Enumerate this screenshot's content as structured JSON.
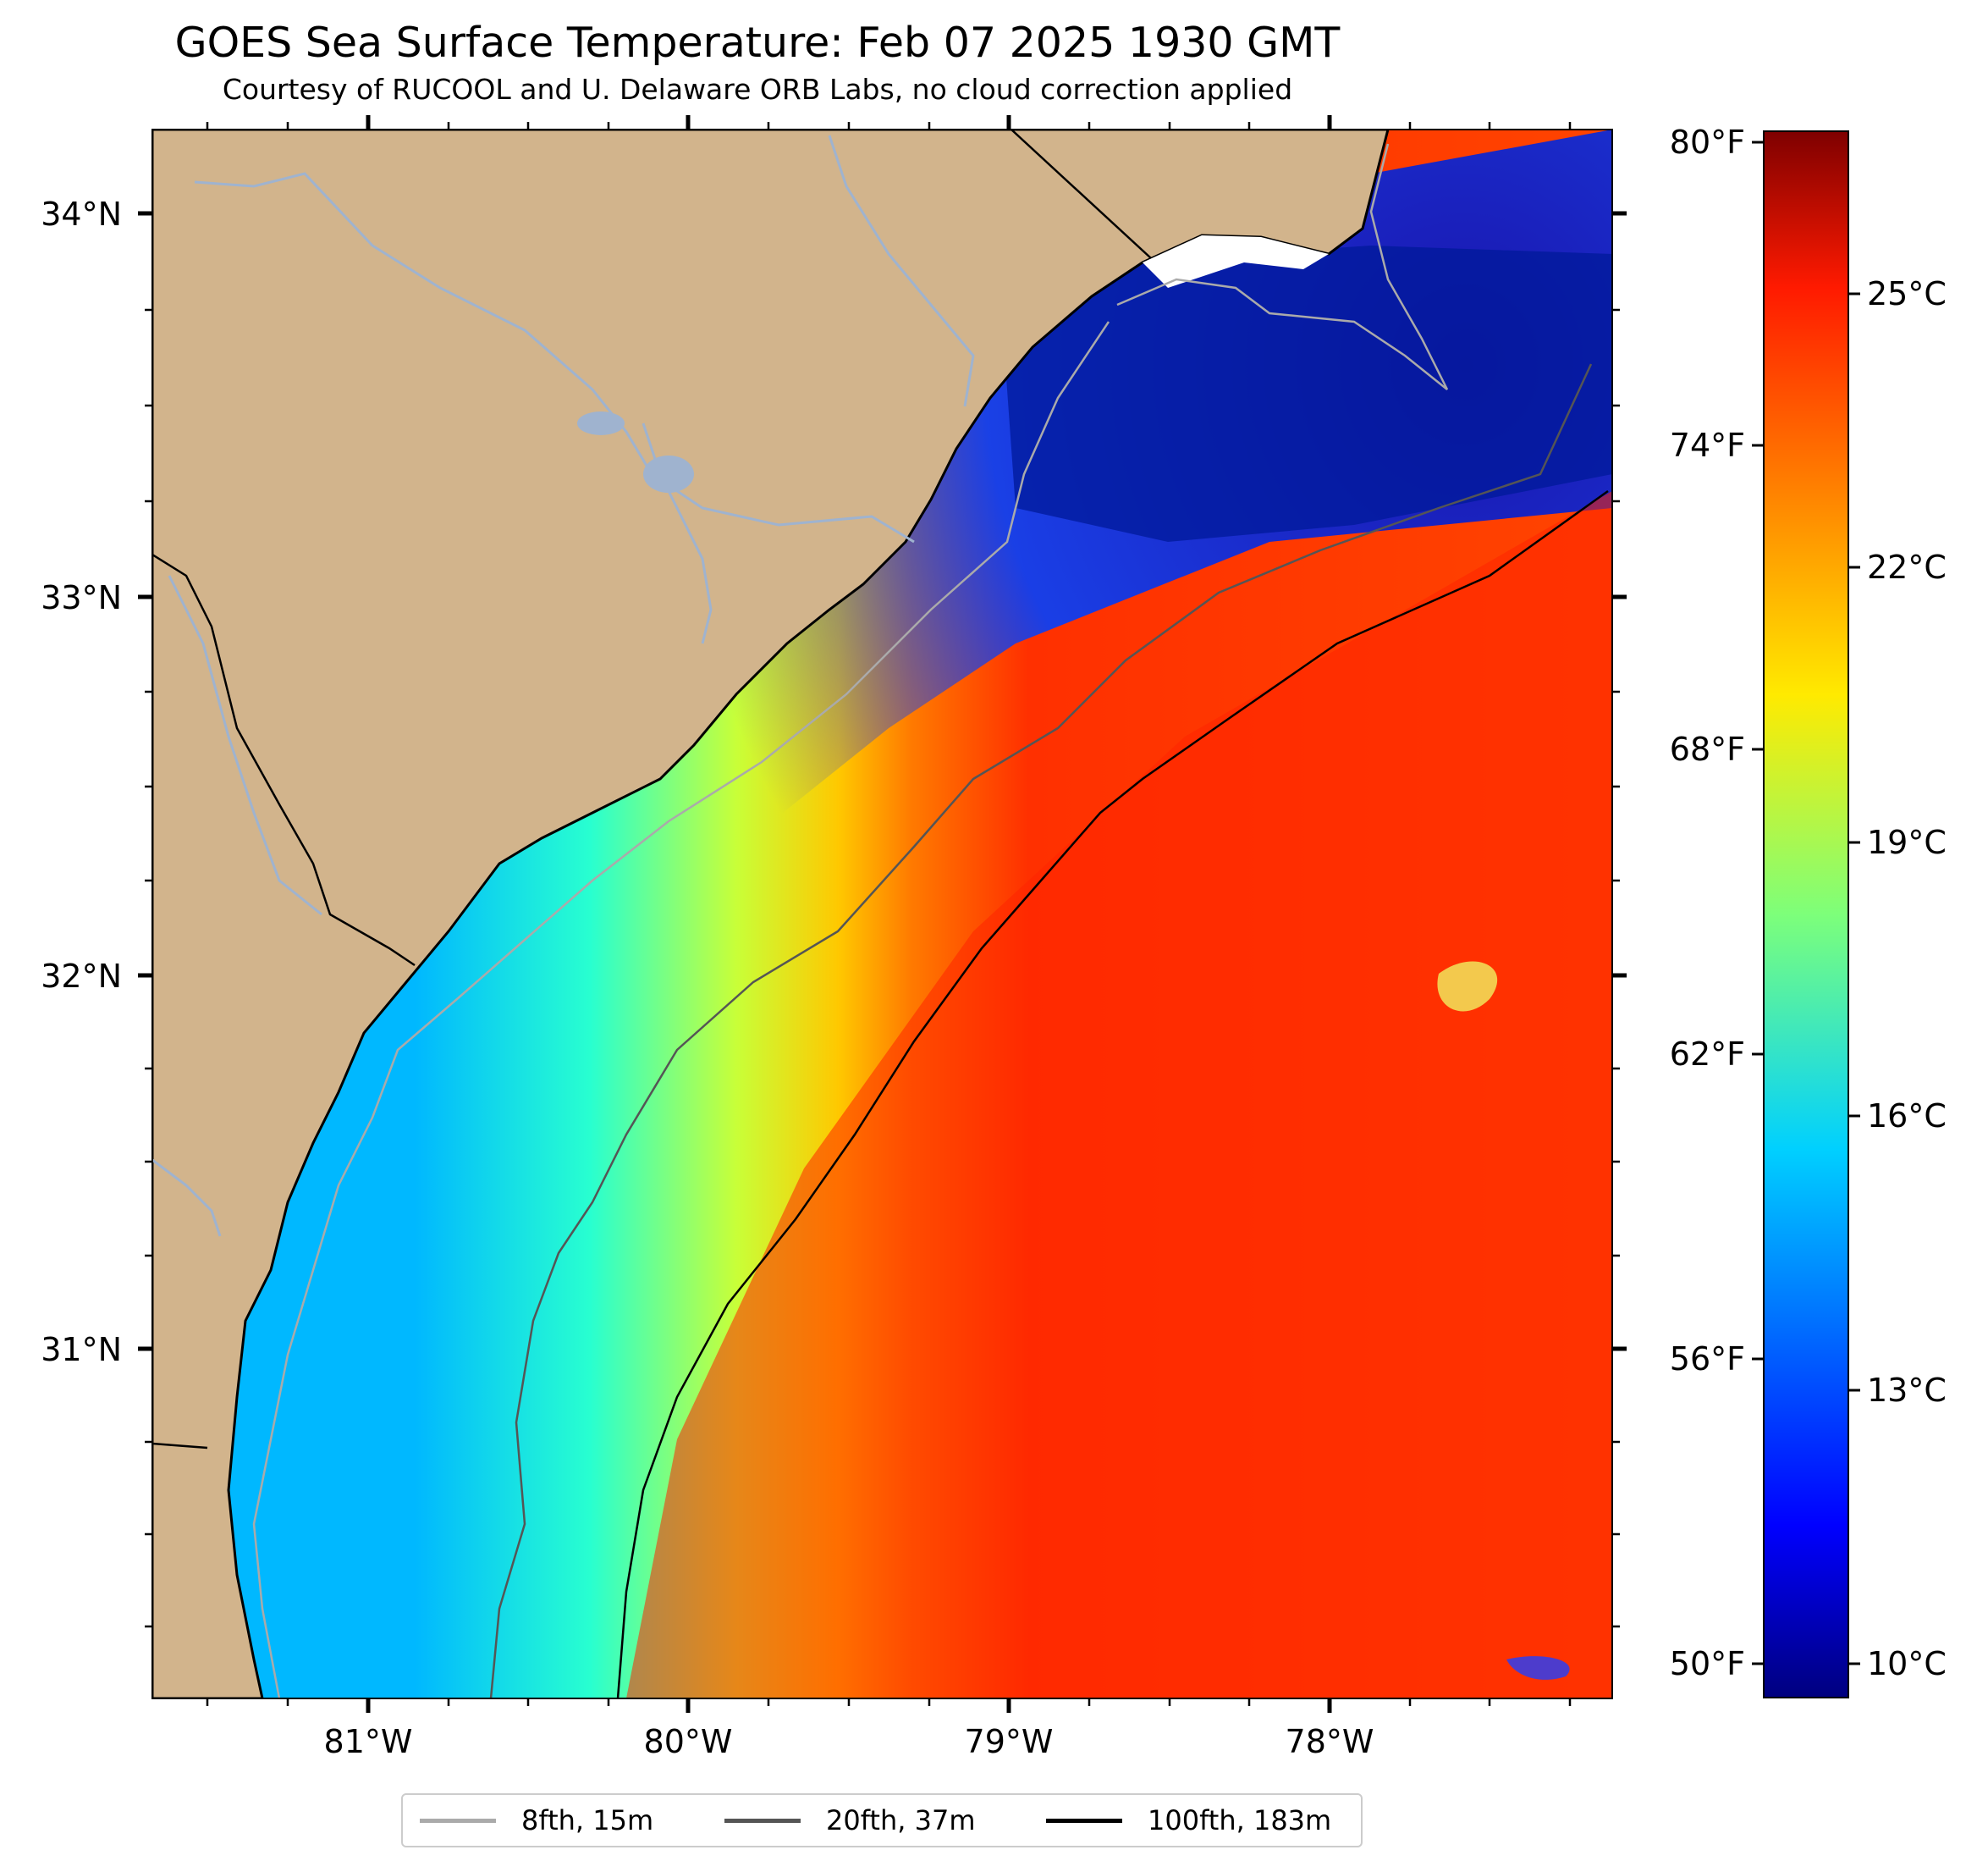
{
  "title": "GOES Sea Surface Temperature: Feb 07 2025 1930 GMT",
  "subtitle": "Courtesy of RUCOOL and U. Delaware ORB Labs, no cloud correction applied",
  "map": {
    "lon_range": [
      -81.67,
      -77.12
    ],
    "lat_range": [
      30.08,
      34.22
    ],
    "lat_ticks": [
      "34°N",
      "33°N",
      "32°N",
      "31°N"
    ],
    "lon_ticks": [
      "81°W",
      "80°W",
      "79°W",
      "78°W"
    ],
    "colors": {
      "land": "#d2b48c",
      "water_gap": "#ffffff",
      "coastline": "#000000",
      "rivers": "#9fb3cf"
    }
  },
  "colorbar": {
    "cmap": "jet",
    "min_c": 9.4,
    "max_c": 27.2,
    "f_ticks": [
      "80°F",
      "74°F",
      "68°F",
      "62°F",
      "56°F",
      "50°F"
    ],
    "c_ticks": [
      "25°C",
      "22°C",
      "19°C",
      "16°C",
      "13°C",
      "10°C"
    ]
  },
  "legend": {
    "items": [
      {
        "label": "8fth, 15m",
        "color": "#aaaaaa"
      },
      {
        "label": "20fth, 37m",
        "color": "#555555"
      },
      {
        "label": "100fth, 183m",
        "color": "#000000"
      }
    ]
  }
}
